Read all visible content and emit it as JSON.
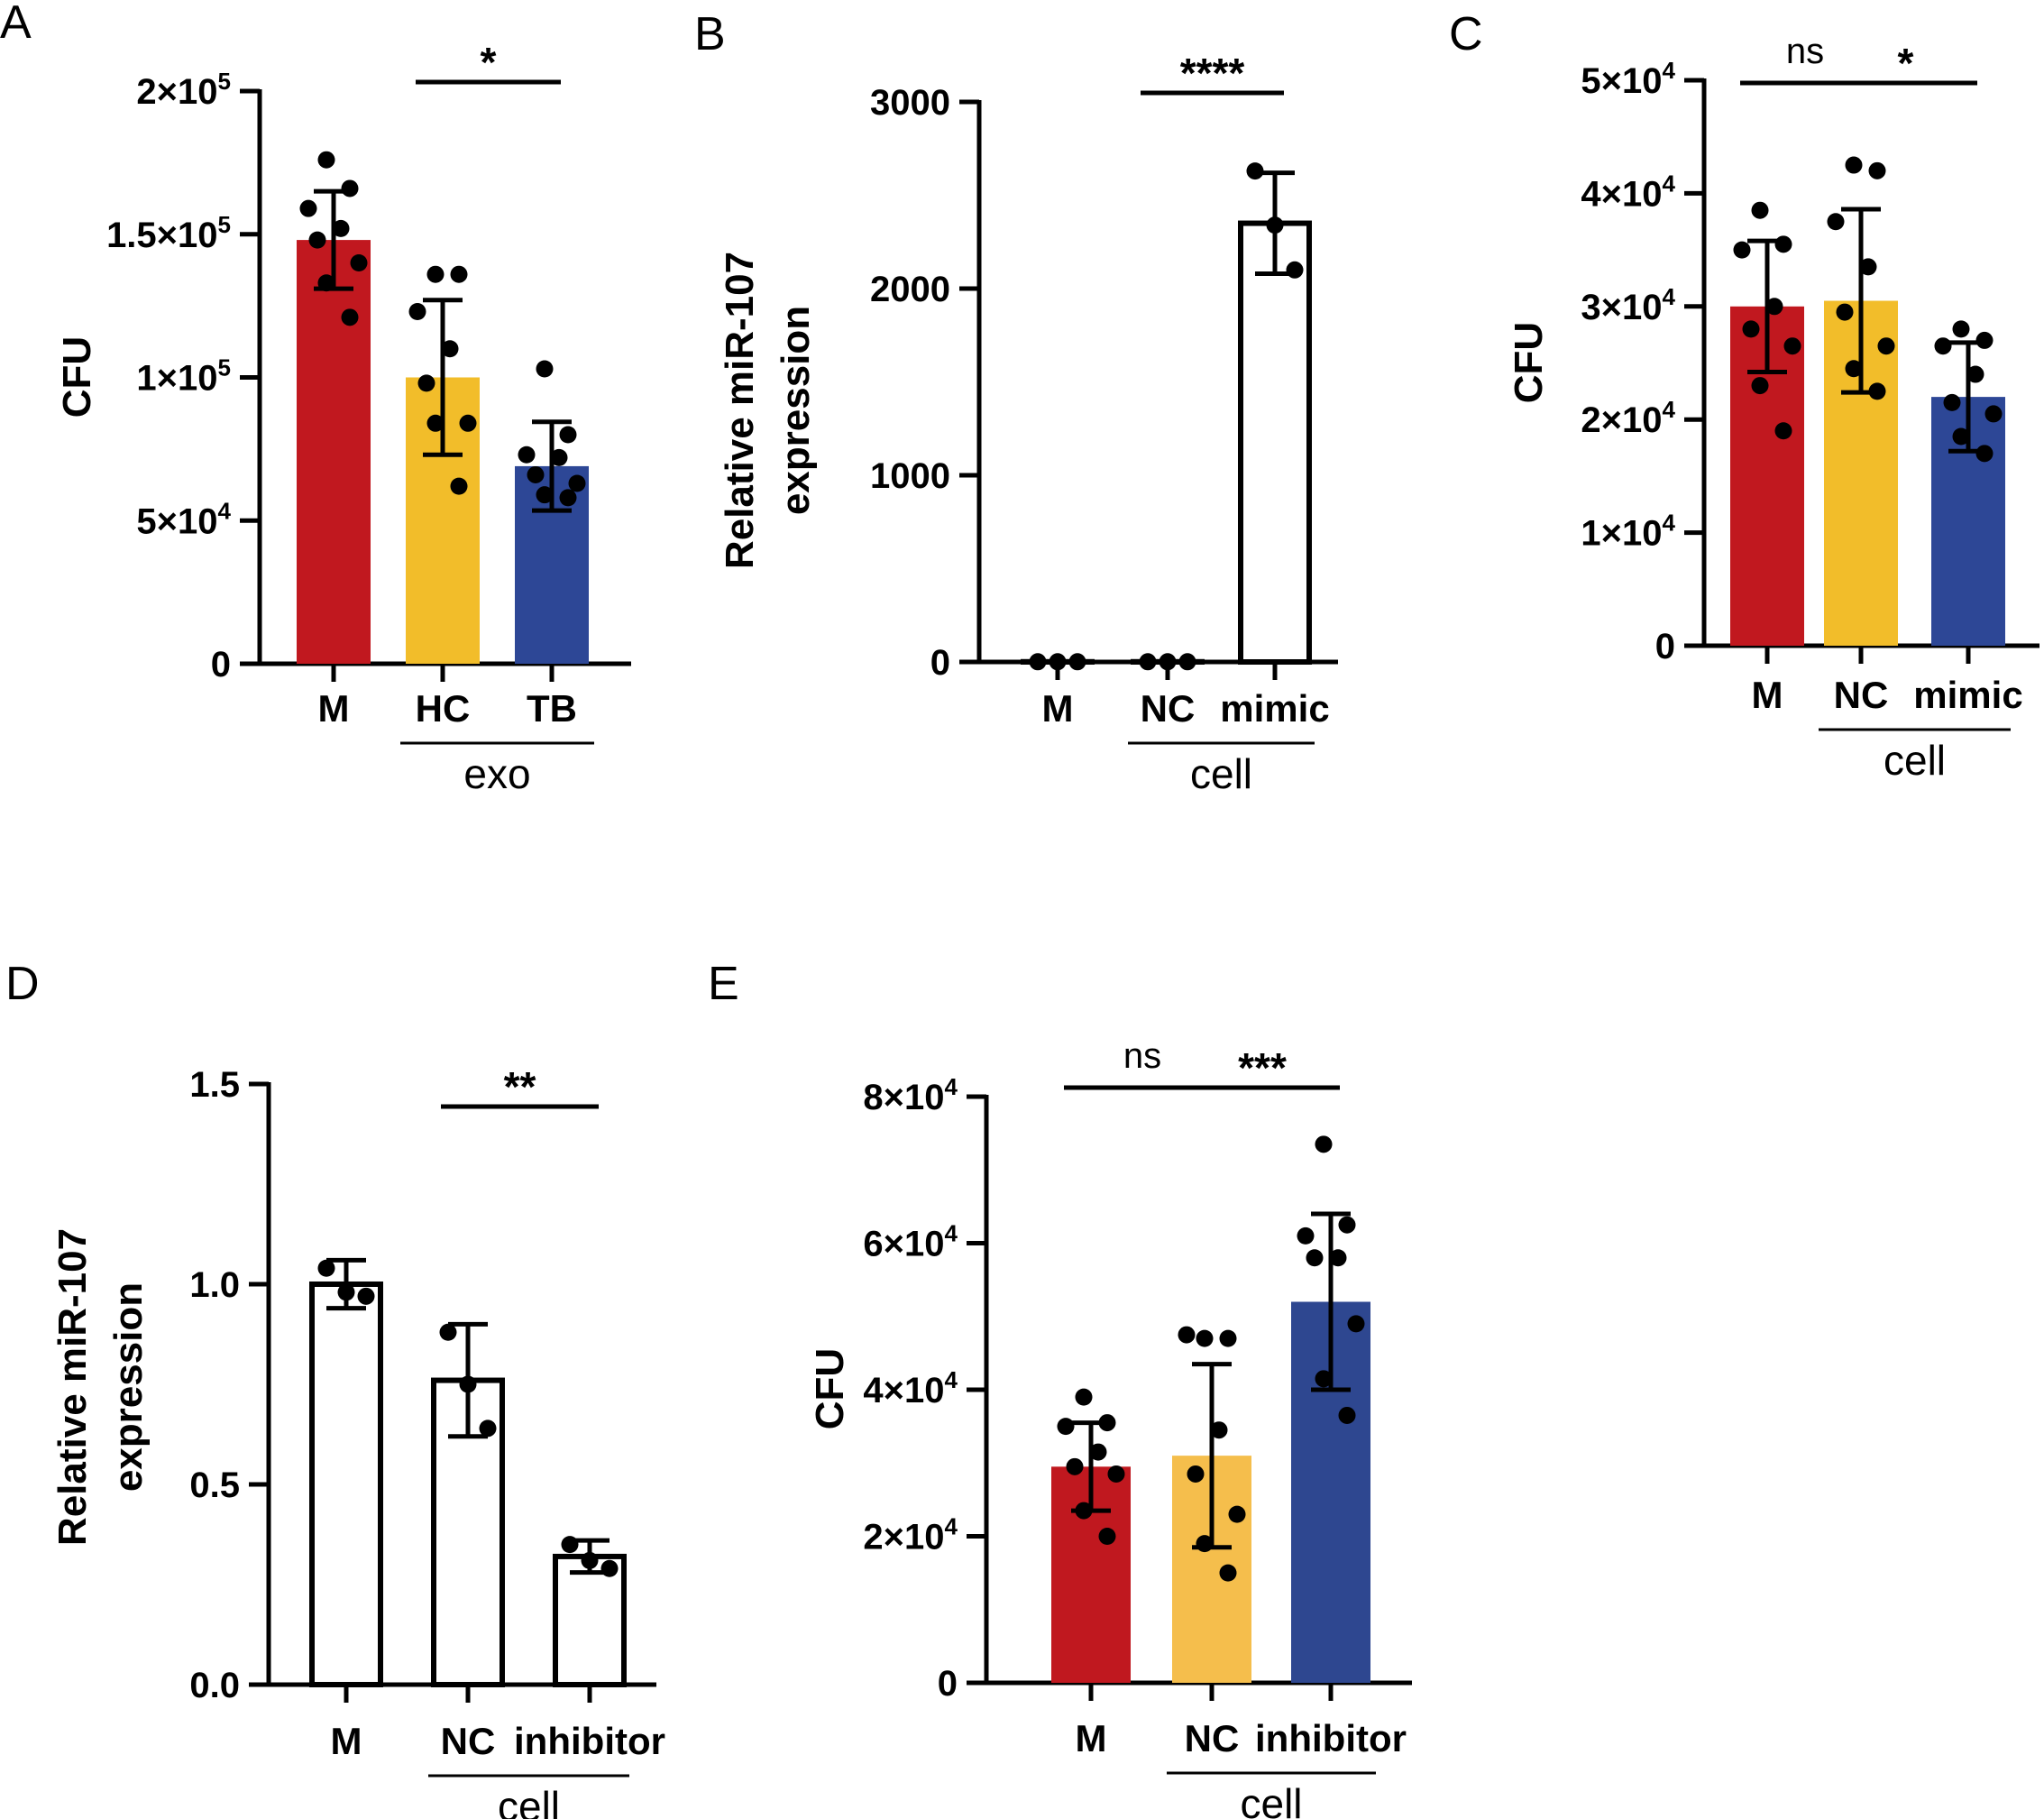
{
  "colors": {
    "red": "#c1181f",
    "yellow": "#f2bd2a",
    "yellowE": "#f5be4c",
    "blue": "#2d4796",
    "blueE": "#2e4790",
    "black": "#000000",
    "white": "#ffffff"
  },
  "chart_data": [
    {
      "id": "A",
      "type": "bar",
      "panel_label": "A",
      "ylabel": "CFU",
      "ylim": [
        0,
        200000
      ],
      "yticks": [
        {
          "value": 0,
          "label": "0"
        },
        {
          "value": 50000,
          "label": "5×10",
          "exp": "4"
        },
        {
          "value": 100000,
          "label": "1×10",
          "exp": "5"
        },
        {
          "value": 150000,
          "label": "1.5×10",
          "exp": "5"
        },
        {
          "value": 200000,
          "label": "2×10",
          "exp": "5"
        }
      ],
      "categories": [
        "M",
        "HC",
        "TB"
      ],
      "group_label": "exo",
      "group_range": [
        1,
        2
      ],
      "values": [
        148000,
        100000,
        69000
      ],
      "sd": [
        17000,
        27000,
        15500
      ],
      "points": [
        [
          176000,
          166000,
          159000,
          152000,
          148000,
          140000,
          133000,
          121000
        ],
        [
          136000,
          136000,
          123000,
          110000,
          98000,
          84000,
          84000,
          62000
        ],
        [
          103000,
          80000,
          73000,
          72000,
          66000,
          63000,
          59000,
          58000
        ]
      ],
      "fill_keys": [
        "red",
        "yellow",
        "blue"
      ],
      "significance": [
        {
          "from": 1,
          "to": 2,
          "label": "*"
        }
      ]
    },
    {
      "id": "B",
      "type": "bar",
      "panel_label": "B",
      "ylabel": [
        "Relative miR-107",
        "expression"
      ],
      "ylim": [
        0,
        3000
      ],
      "yticks": [
        {
          "value": 0,
          "label": "0"
        },
        {
          "value": 1000,
          "label": "1000"
        },
        {
          "value": 2000,
          "label": "2000"
        },
        {
          "value": 3000,
          "label": "3000"
        }
      ],
      "categories": [
        "M",
        "NC",
        "mimic"
      ],
      "group_label": "cell",
      "group_range": [
        1,
        2
      ],
      "values": [
        1,
        1,
        2350
      ],
      "sd": [
        0,
        0,
        270
      ],
      "points": [
        [
          1,
          1,
          1
        ],
        [
          1,
          1,
          1
        ],
        [
          2630,
          2340,
          2100
        ]
      ],
      "fill_keys": [
        "white",
        "white",
        "white"
      ],
      "significance": [
        {
          "from": 1,
          "to": 2,
          "label": "****"
        }
      ]
    },
    {
      "id": "C",
      "type": "bar",
      "panel_label": "C",
      "ylabel": "CFU",
      "ylim": [
        0,
        50000
      ],
      "yticks": [
        {
          "value": 0,
          "label": "0"
        },
        {
          "value": 10000,
          "label": "1×10",
          "exp": "4"
        },
        {
          "value": 20000,
          "label": "2×10",
          "exp": "4"
        },
        {
          "value": 30000,
          "label": "3×10",
          "exp": "4"
        },
        {
          "value": 40000,
          "label": "4×10",
          "exp": "4"
        },
        {
          "value": 50000,
          "label": "5×10",
          "exp": "4"
        }
      ],
      "categories": [
        "M",
        "NC",
        "mimic"
      ],
      "group_label": "cell",
      "group_range": [
        1,
        2
      ],
      "values": [
        30000,
        30500,
        22000
      ],
      "sd": [
        5800,
        8100,
        4800
      ],
      "points": [
        [
          38500,
          35500,
          35000,
          30000,
          28000,
          26500,
          23000,
          19000
        ],
        [
          42500,
          42000,
          37500,
          33500,
          29500,
          26500,
          24500,
          22500
        ],
        [
          28000,
          27000,
          26500,
          24000,
          21500,
          20500,
          18500,
          17000
        ]
      ],
      "fill_keys": [
        "red",
        "yellow",
        "blue"
      ],
      "significance": [
        {
          "from": 0,
          "to": 1,
          "label": "ns"
        },
        {
          "from": 1,
          "to": 2,
          "label": "*"
        }
      ]
    },
    {
      "id": "D",
      "type": "bar",
      "panel_label": "D",
      "ylabel": [
        "Relative miR-107",
        "expression"
      ],
      "ylim": [
        0,
        1.5
      ],
      "yticks": [
        {
          "value": 0,
          "label": "0.0"
        },
        {
          "value": 0.5,
          "label": "0.5"
        },
        {
          "value": 1.0,
          "label": "1.0"
        },
        {
          "value": 1.5,
          "label": "1.5"
        }
      ],
      "categories": [
        "M",
        "NC",
        "inhibitor"
      ],
      "group_label": "cell",
      "group_range": [
        1,
        2
      ],
      "values": [
        1.0,
        0.76,
        0.32
      ],
      "sd": [
        0.06,
        0.14,
        0.04
      ],
      "points": [
        [
          1.04,
          0.98,
          0.97
        ],
        [
          0.88,
          0.75,
          0.64
        ],
        [
          0.35,
          0.31,
          0.29
        ]
      ],
      "fill_keys": [
        "white",
        "white",
        "white"
      ],
      "significance": [
        {
          "from": 1,
          "to": 2,
          "label": "**"
        }
      ]
    },
    {
      "id": "E",
      "type": "bar",
      "panel_label": "E",
      "ylabel": "CFU",
      "ylim": [
        0,
        80000
      ],
      "yticks": [
        {
          "value": 0,
          "label": "0"
        },
        {
          "value": 20000,
          "label": "2×10",
          "exp": "4"
        },
        {
          "value": 40000,
          "label": "4×10",
          "exp": "4"
        },
        {
          "value": 60000,
          "label": "6×10",
          "exp": "4"
        },
        {
          "value": 80000,
          "label": "8×10",
          "exp": "4"
        }
      ],
      "categories": [
        "M",
        "NC",
        "inhibitor"
      ],
      "group_label": "cell",
      "group_range": [
        1,
        2
      ],
      "values": [
        29500,
        31000,
        52000
      ],
      "sd": [
        6000,
        12500,
        12000
      ],
      "points": [
        [
          39000,
          35500,
          35000,
          31500,
          29500,
          28500,
          23500,
          20000
        ],
        [
          47000,
          47000,
          47500,
          34500,
          28500,
          23000,
          19000,
          15000
        ],
        [
          73500,
          62500,
          61000,
          58000,
          58000,
          49000,
          41500,
          36500
        ]
      ],
      "fill_keys": [
        "redE",
        "yellowE",
        "blueE"
      ],
      "significance": [
        {
          "from": 0,
          "to": 1,
          "label": "ns"
        },
        {
          "from": 1,
          "to": 2,
          "label": "***"
        }
      ]
    }
  ]
}
